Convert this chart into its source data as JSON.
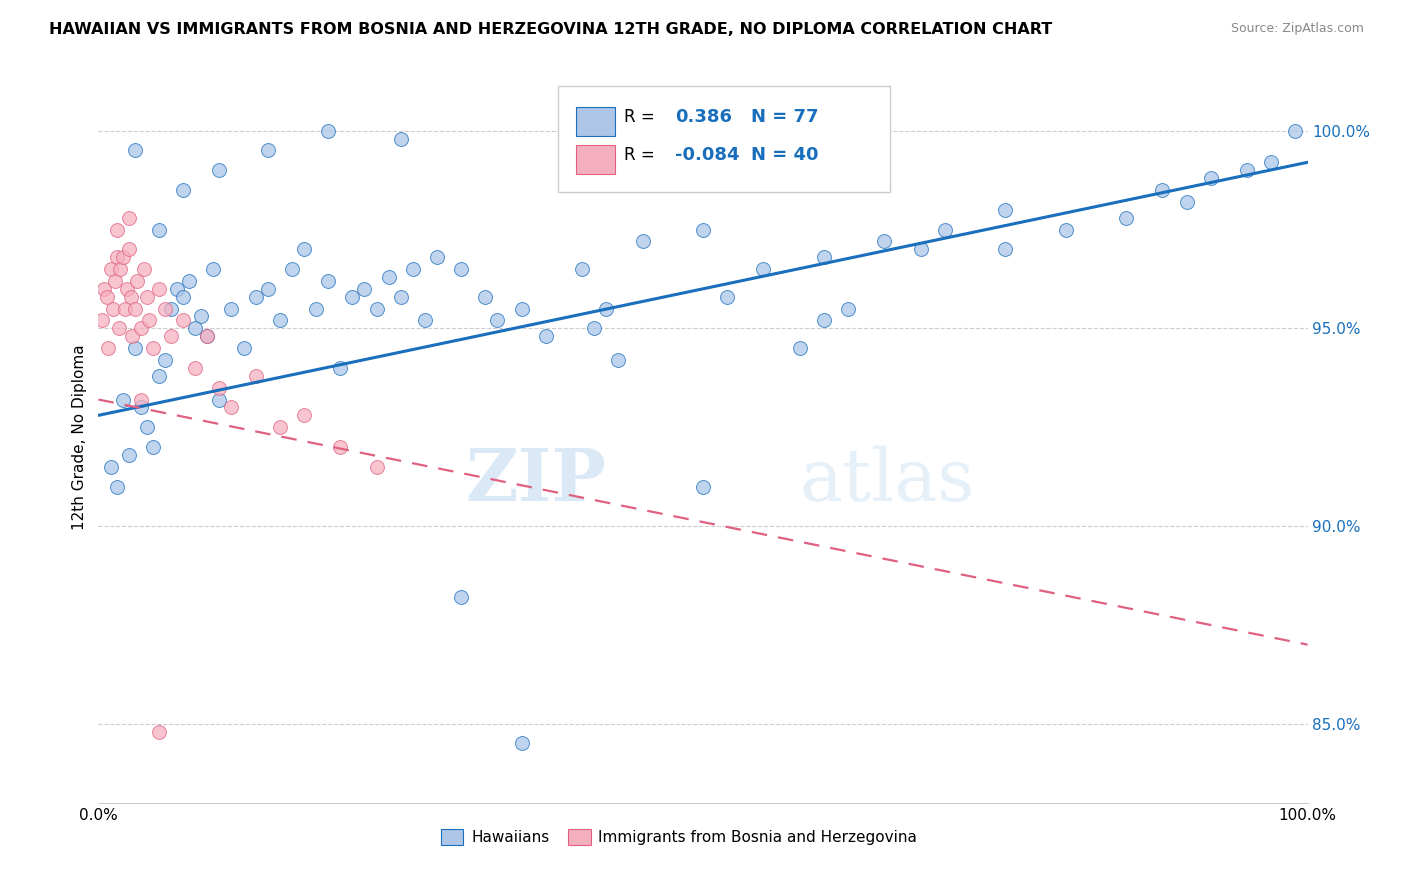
{
  "title": "HAWAIIAN VS IMMIGRANTS FROM BOSNIA AND HERZEGOVINA 12TH GRADE, NO DIPLOMA CORRELATION CHART",
  "source": "Source: ZipAtlas.com",
  "ylabel": "12th Grade, No Diploma",
  "right_yticks": [
    85.0,
    90.0,
    95.0,
    100.0
  ],
  "right_ytick_labels": [
    "85.0%",
    "90.0%",
    "95.0%",
    "100.0%"
  ],
  "xlim": [
    0.0,
    100.0
  ],
  "ylim": [
    83.0,
    101.5
  ],
  "watermark_zip": "ZIP",
  "watermark_atlas": "atlas",
  "legend_R_blue": "0.386",
  "legend_N_blue": "77",
  "legend_R_pink": "-0.084",
  "legend_N_pink": "40",
  "blue_color": "#adc6e8",
  "pink_color": "#f5b0c0",
  "trendline_blue": "#1a6fbd",
  "trendline_pink": "#e06080",
  "legend_label_blue": "Hawaiians",
  "legend_label_pink": "Immigrants from Bosnia and Herzegovina",
  "blue_trend_x": [
    0,
    100
  ],
  "blue_trend_y": [
    92.8,
    99.2
  ],
  "pink_trend_x": [
    0,
    100
  ],
  "pink_trend_y": [
    93.2,
    87.0
  ],
  "blue_points_x": [
    1.0,
    1.5,
    2.0,
    2.5,
    3.0,
    3.5,
    4.0,
    4.5,
    5.0,
    5.5,
    6.0,
    6.5,
    7.0,
    7.5,
    8.0,
    8.5,
    9.0,
    9.5,
    10.0,
    11.0,
    12.0,
    13.0,
    14.0,
    15.0,
    16.0,
    17.0,
    18.0,
    19.0,
    20.0,
    21.0,
    22.0,
    23.0,
    24.0,
    25.0,
    26.0,
    27.0,
    28.0,
    30.0,
    32.0,
    33.0,
    35.0,
    37.0,
    40.0,
    41.0,
    43.0,
    45.0,
    50.0,
    52.0,
    55.0,
    58.0,
    60.0,
    62.0,
    65.0,
    70.0,
    75.0,
    80.0,
    85.0,
    88.0,
    90.0,
    92.0,
    95.0,
    97.0,
    99.0,
    3.0,
    5.0,
    7.0,
    10.0,
    14.0,
    19.0,
    25.0,
    30.0,
    35.0,
    42.0,
    50.0,
    60.0,
    68.0,
    75.0
  ],
  "blue_points_y": [
    91.5,
    91.0,
    93.2,
    91.8,
    94.5,
    93.0,
    92.5,
    92.0,
    93.8,
    94.2,
    95.5,
    96.0,
    95.8,
    96.2,
    95.0,
    95.3,
    94.8,
    96.5,
    93.2,
    95.5,
    94.5,
    95.8,
    96.0,
    95.2,
    96.5,
    97.0,
    95.5,
    96.2,
    94.0,
    95.8,
    96.0,
    95.5,
    96.3,
    95.8,
    96.5,
    95.2,
    96.8,
    96.5,
    95.8,
    95.2,
    95.5,
    94.8,
    96.5,
    95.0,
    94.2,
    97.2,
    91.0,
    95.8,
    96.5,
    94.5,
    96.8,
    95.5,
    97.2,
    97.5,
    97.0,
    97.5,
    97.8,
    98.5,
    98.2,
    98.8,
    99.0,
    99.2,
    100.0,
    99.5,
    97.5,
    98.5,
    99.0,
    99.5,
    100.0,
    99.8,
    88.2,
    84.5,
    95.5,
    97.5,
    95.2,
    97.0,
    98.0
  ],
  "pink_points_x": [
    0.3,
    0.5,
    0.7,
    0.8,
    1.0,
    1.2,
    1.4,
    1.5,
    1.7,
    1.8,
    2.0,
    2.2,
    2.4,
    2.5,
    2.7,
    2.8,
    3.0,
    3.2,
    3.5,
    3.8,
    4.0,
    4.2,
    4.5,
    5.0,
    5.5,
    6.0,
    7.0,
    8.0,
    9.0,
    10.0,
    11.0,
    13.0,
    15.0,
    17.0,
    20.0,
    23.0,
    1.5,
    2.5,
    3.5,
    5.0
  ],
  "pink_points_y": [
    95.2,
    96.0,
    95.8,
    94.5,
    96.5,
    95.5,
    96.2,
    96.8,
    95.0,
    96.5,
    96.8,
    95.5,
    96.0,
    97.0,
    95.8,
    94.8,
    95.5,
    96.2,
    95.0,
    96.5,
    95.8,
    95.2,
    94.5,
    96.0,
    95.5,
    94.8,
    95.2,
    94.0,
    94.8,
    93.5,
    93.0,
    93.8,
    92.5,
    92.8,
    92.0,
    91.5,
    97.5,
    97.8,
    93.2,
    84.8
  ]
}
